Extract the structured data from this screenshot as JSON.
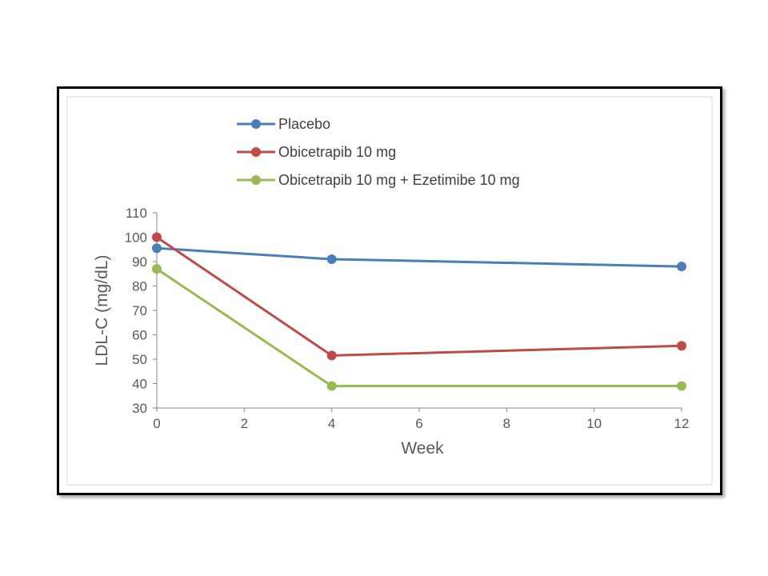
{
  "chart_data": {
    "type": "line",
    "xlabel": "Week",
    "ylabel": "LDL-C (mg/dL)",
    "x": [
      0,
      4,
      12
    ],
    "xlim": [
      0,
      12
    ],
    "ylim": [
      30,
      110
    ],
    "xticks": [
      "0",
      "2",
      "4",
      "6",
      "8",
      "10",
      "12"
    ],
    "yticks": [
      "30",
      "40",
      "50",
      "60",
      "70",
      "80",
      "90",
      "100",
      "110"
    ],
    "grid": false,
    "legend_position": "top",
    "series": [
      {
        "name": "Placebo",
        "color": "#4a7ebb",
        "values": [
          95.5,
          91,
          88
        ]
      },
      {
        "name": "Obicetrapib 10 mg",
        "color": "#be4b48",
        "values": [
          100,
          51.5,
          55.5
        ]
      },
      {
        "name": "Obicetrapib 10 mg + Ezetimibe 10 mg",
        "color": "#98b954",
        "values": [
          87,
          39,
          39
        ]
      }
    ]
  }
}
